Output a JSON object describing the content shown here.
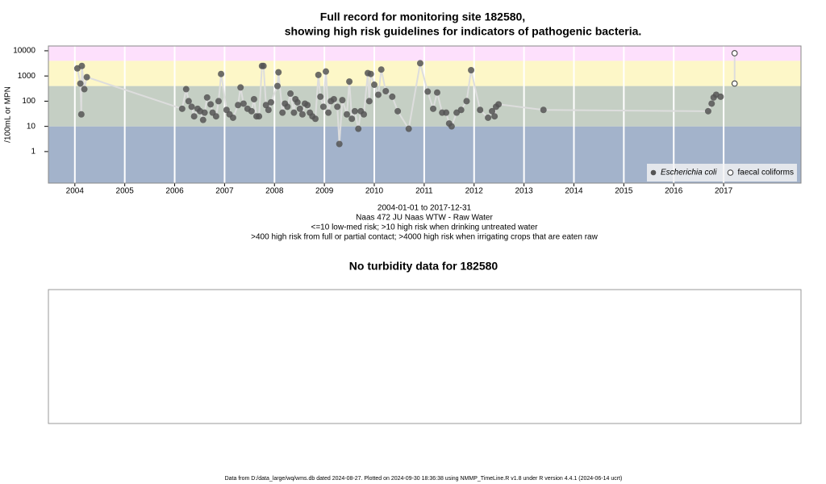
{
  "chart_data": [
    {
      "type": "scatter",
      "title": [
        "Full record for monitoring site 182580,",
        "showing high risk guidelines for indicators of pathogenic bacteria."
      ],
      "y_label": "/100mL or MPN",
      "notes": [
        "2004-01-01 to 2017-12-31",
        "Naas 472 JU Naas WTW - Raw Water",
        "<=10 low-med risk; >10 high risk when drinking untreated water",
        ">400 high risk from full or partial contact; >4000 high risk when irrigating crops that are eaten raw"
      ],
      "yscale": "log",
      "xlim": [
        2003.47,
        2018.55
      ],
      "ylim": [
        0.056,
        15500
      ],
      "xticks": [
        2004,
        2005,
        2006,
        2007,
        2008,
        2009,
        2010,
        2011,
        2012,
        2013,
        2014,
        2015,
        2016,
        2017
      ],
      "yticks": [
        1,
        10,
        100,
        1000,
        10000
      ],
      "grid": true,
      "line_color": "#dddddd",
      "bands": [
        {
          "upper": 10,
          "color": "#a3b3cb"
        },
        {
          "upper": 400,
          "color": "#c5cfc4"
        },
        {
          "upper": 4000,
          "color": "#fdf7c8"
        },
        {
          "upper": 15500,
          "color": "#fde0fc"
        }
      ],
      "legend": "bottom-right",
      "series": [
        {
          "name": "Escherichia coli",
          "marker": "filled",
          "color": "#555555",
          "x": [
            2004.05,
            2004.11,
            2004.13,
            2004.14,
            2004.19,
            2004.24,
            2006.15,
            2006.23,
            2006.28,
            2006.34,
            2006.39,
            2006.46,
            2006.51,
            2006.57,
            2006.6,
            2006.65,
            2006.72,
            2006.76,
            2006.83,
            2006.88,
            2006.93,
            2007.04,
            2007.1,
            2007.17,
            2007.27,
            2007.32,
            2007.38,
            2007.46,
            2007.54,
            2007.59,
            2007.64,
            2007.69,
            2007.75,
            2007.78,
            2007.83,
            2007.88,
            2007.93,
            2008.06,
            2008.08,
            2008.16,
            2008.21,
            2008.26,
            2008.32,
            2008.39,
            2008.42,
            2008.46,
            2008.51,
            2008.56,
            2008.61,
            2008.66,
            2008.71,
            2008.76,
            2008.82,
            2008.88,
            2008.92,
            2008.98,
            2009.03,
            2009.08,
            2009.13,
            2009.19,
            2009.26,
            2009.3,
            2009.36,
            2009.45,
            2009.5,
            2009.55,
            2009.61,
            2009.68,
            2009.73,
            2009.79,
            2009.87,
            2009.9,
            2009.93,
            2010.0,
            2010.08,
            2010.14,
            2010.23,
            2010.36,
            2010.47,
            2010.69,
            2010.92,
            2011.07,
            2011.18,
            2011.26,
            2011.36,
            2011.44,
            2011.5,
            2011.55,
            2011.65,
            2011.74,
            2011.85,
            2011.94,
            2012.12,
            2012.28,
            2012.36,
            2012.41,
            2012.44,
            2012.49,
            2013.39,
            2016.69,
            2016.76,
            2016.8,
            2016.85,
            2016.94
          ],
          "values": [
            2000,
            500,
            30,
            2500,
            300,
            900,
            50,
            300,
            100,
            60,
            25,
            50,
            40,
            18,
            35,
            140,
            75,
            35,
            25,
            100,
            1200,
            45,
            30,
            22,
            70,
            350,
            80,
            50,
            40,
            120,
            25,
            25,
            2500,
            2500,
            70,
            45,
            90,
            400,
            1400,
            35,
            80,
            60,
            200,
            35,
            120,
            90,
            50,
            30,
            80,
            70,
            35,
            25,
            20,
            1100,
            150,
            60,
            1500,
            35,
            100,
            120,
            60,
            2,
            110,
            30,
            600,
            20,
            40,
            8,
            40,
            30,
            1300,
            100,
            1200,
            450,
            180,
            1800,
            250,
            150,
            40,
            8,
            3200,
            240,
            50,
            220,
            35,
            35,
            13,
            10,
            35,
            45,
            100,
            1700,
            45,
            22,
            40,
            25,
            60,
            75,
            45,
            40,
            80,
            140,
            180,
            150
          ]
        },
        {
          "name": "faecal coliforms",
          "marker": "open",
          "color": "#333333",
          "x": [
            2017.22,
            2017.22
          ],
          "values": [
            500,
            8000
          ]
        }
      ]
    },
    {
      "type": "line",
      "title": "No turbidity data for 182580"
    }
  ],
  "footer": "Data from D:/data_large/wq/wms.db dated 2024-08-27. Plotted on 2024-09-30 18:36:38 using NMMP_TimeLine.R v1.8 under R version 4.4.1 (2024-06-14 ucrt)"
}
